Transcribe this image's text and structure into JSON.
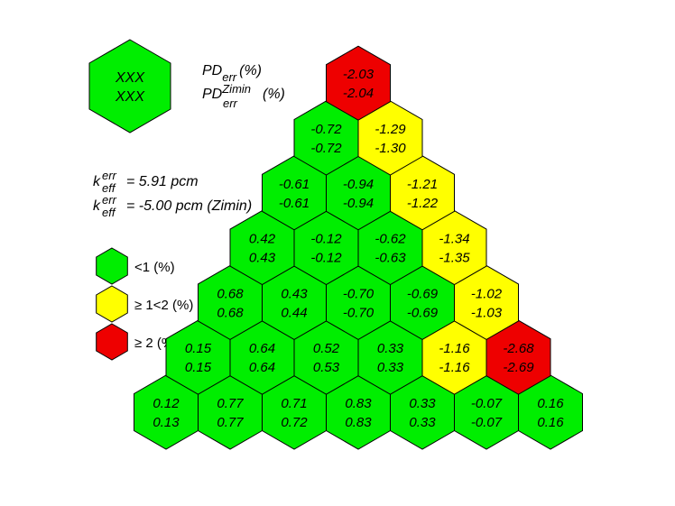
{
  "colors": {
    "green": "#00ee00",
    "yellow": "#ffff00",
    "red": "#ee0000",
    "stroke": "#000000"
  },
  "key": {
    "top": "XXX",
    "bottom": "XXX",
    "label1_main": "PD",
    "label1_sub": "err",
    "label1_unit": "(%)",
    "label2_main": "PD",
    "label2_sup": "Zimin",
    "label2_sub": "err",
    "label2_unit": "(%)"
  },
  "keff": {
    "line1_main": "k",
    "line1_sup": "err",
    "line1_sub": "eff",
    "line1_text": "= 5.91 pcm",
    "line2_main": "k",
    "line2_sup": "err",
    "line2_sub": "eff",
    "line2_text": "= -5.00 pcm (Zimin)"
  },
  "legend": [
    {
      "label": "<1 (%)",
      "color": "green"
    },
    {
      "label": "≥ 1<2 (%)",
      "color": "yellow"
    },
    {
      "label": "≥ 2 (%)",
      "color": "red"
    }
  ],
  "rows": [
    [
      {
        "top": "0.12",
        "bottom": "0.13",
        "color": "green"
      },
      {
        "top": "0.77",
        "bottom": "0.77",
        "color": "green"
      },
      {
        "top": "0.71",
        "bottom": "0.72",
        "color": "green"
      },
      {
        "top": "0.83",
        "bottom": "0.83",
        "color": "green"
      },
      {
        "top": "0.33",
        "bottom": "0.33",
        "color": "green"
      },
      {
        "top": "-0.07",
        "bottom": "-0.07",
        "color": "green"
      },
      {
        "top": "0.16",
        "bottom": "0.16",
        "color": "green"
      }
    ],
    [
      {
        "top": "0.15",
        "bottom": "0.15",
        "color": "green"
      },
      {
        "top": "0.64",
        "bottom": "0.64",
        "color": "green"
      },
      {
        "top": "0.52",
        "bottom": "0.53",
        "color": "green"
      },
      {
        "top": "0.33",
        "bottom": "0.33",
        "color": "green"
      },
      {
        "top": "-1.16",
        "bottom": "-1.16",
        "color": "yellow"
      },
      {
        "top": "-2.68",
        "bottom": "-2.69",
        "color": "red"
      }
    ],
    [
      {
        "top": "0.68",
        "bottom": "0.68",
        "color": "green"
      },
      {
        "top": "0.43",
        "bottom": "0.44",
        "color": "green"
      },
      {
        "top": "-0.70",
        "bottom": "-0.70",
        "color": "green"
      },
      {
        "top": "-0.69",
        "bottom": "-0.69",
        "color": "green"
      },
      {
        "top": "-1.02",
        "bottom": "-1.03",
        "color": "yellow"
      }
    ],
    [
      {
        "top": "0.42",
        "bottom": "0.43",
        "color": "green"
      },
      {
        "top": "-0.12",
        "bottom": "-0.12",
        "color": "green"
      },
      {
        "top": "-0.62",
        "bottom": "-0.63",
        "color": "green"
      },
      {
        "top": "-1.34",
        "bottom": "-1.35",
        "color": "yellow"
      }
    ],
    [
      {
        "top": "-0.61",
        "bottom": "-0.61",
        "color": "green"
      },
      {
        "top": "-0.94",
        "bottom": "-0.94",
        "color": "green"
      },
      {
        "top": "-1.21",
        "bottom": "-1.22",
        "color": "yellow"
      }
    ],
    [
      {
        "top": "-0.72",
        "bottom": "-0.72",
        "color": "green"
      },
      {
        "top": "-1.29",
        "bottom": "-1.30",
        "color": "yellow"
      }
    ],
    [
      {
        "top": "-2.03",
        "bottom": "-2.04",
        "color": "red"
      }
    ]
  ]
}
